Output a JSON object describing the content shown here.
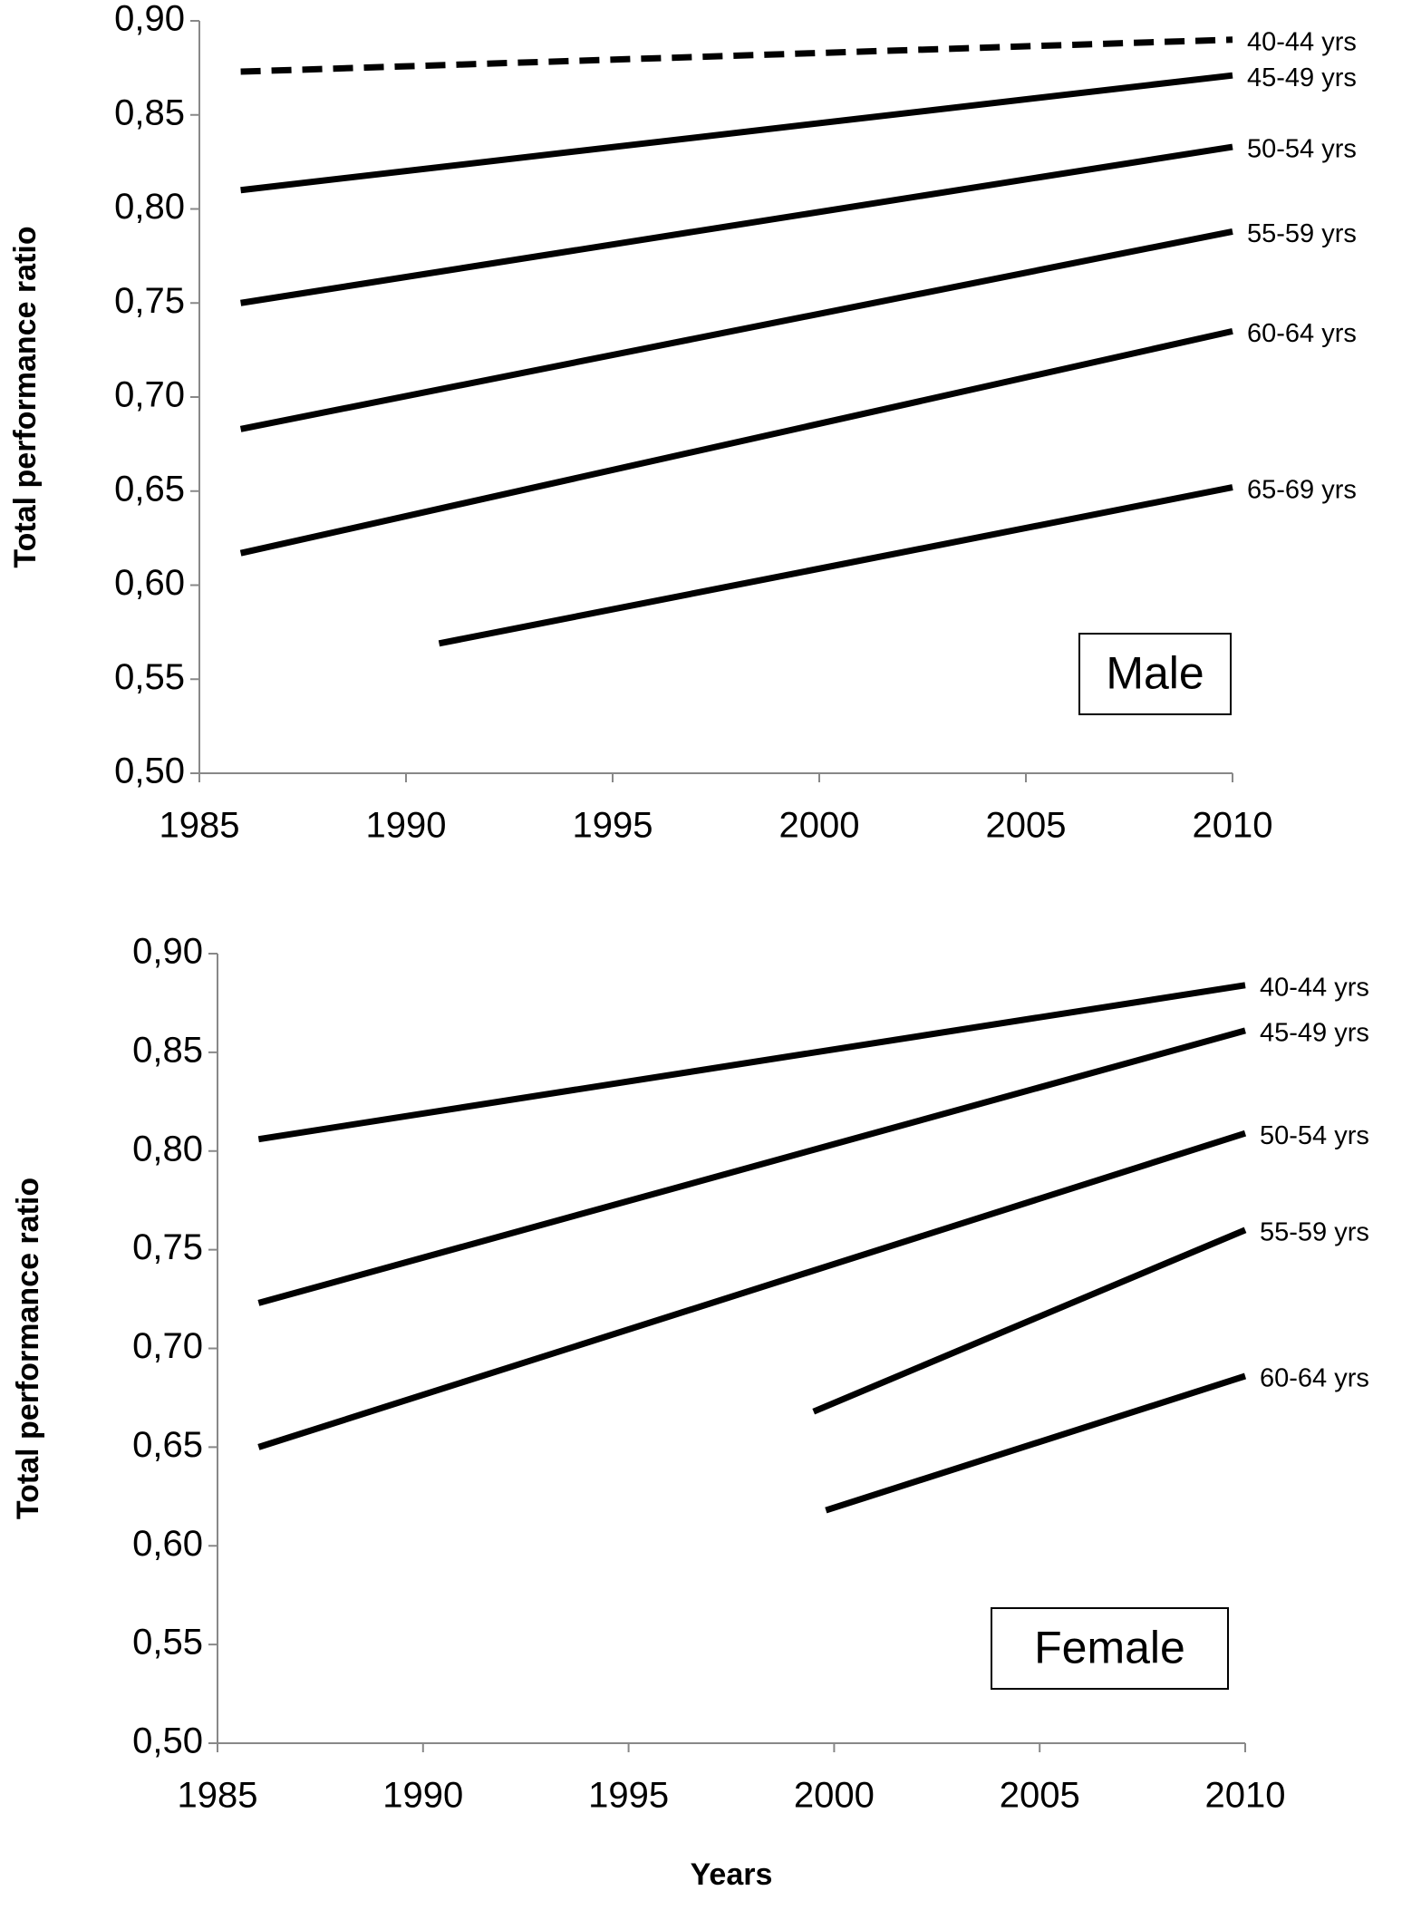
{
  "chart_data": [
    {
      "type": "line",
      "annotation": "Male",
      "y_label": "Total performance ratio",
      "xlim": [
        1985,
        2010
      ],
      "xticks": [
        1985,
        1990,
        1995,
        2000,
        2005,
        2010
      ],
      "ylim": [
        0.5,
        0.9
      ],
      "yticks": [
        {
          "value": 0.5,
          "label": "0,50"
        },
        {
          "value": 0.55,
          "label": "0,55"
        },
        {
          "value": 0.6,
          "label": "0,60"
        },
        {
          "value": 0.65,
          "label": "0,65"
        },
        {
          "value": 0.7,
          "label": "0,70"
        },
        {
          "value": 0.75,
          "label": "0,75"
        },
        {
          "value": 0.8,
          "label": "0,80"
        },
        {
          "value": 0.85,
          "label": "0,85"
        },
        {
          "value": 0.9,
          "label": "0,90"
        }
      ],
      "series": [
        {
          "name": "40-44 yrs",
          "color": "#000000",
          "style": "dashed",
          "x": [
            1986,
            2010
          ],
          "values": [
            0.873,
            0.89
          ]
        },
        {
          "name": "45-49 yrs",
          "color": "#000000",
          "style": "solid",
          "x": [
            1986,
            2010
          ],
          "values": [
            0.81,
            0.871
          ]
        },
        {
          "name": "50-54 yrs",
          "color": "#000000",
          "style": "solid",
          "x": [
            1986,
            2010
          ],
          "values": [
            0.75,
            0.833
          ]
        },
        {
          "name": "55-59 yrs",
          "color": "#000000",
          "style": "solid",
          "x": [
            1986,
            2010
          ],
          "values": [
            0.683,
            0.788
          ]
        },
        {
          "name": "60-64 yrs",
          "color": "#000000",
          "style": "solid",
          "x": [
            1986,
            2010
          ],
          "values": [
            0.617,
            0.735
          ]
        },
        {
          "name": "65-69 yrs",
          "color": "#000000",
          "style": "solid",
          "x": [
            1990.8,
            2010
          ],
          "values": [
            0.569,
            0.652
          ]
        }
      ]
    },
    {
      "type": "line",
      "annotation": "Female",
      "y_label": "Total performance ratio",
      "x_label": "Years",
      "xlim": [
        1985,
        2010
      ],
      "xticks": [
        1985,
        1990,
        1995,
        2000,
        2005,
        2010
      ],
      "ylim": [
        0.5,
        0.9
      ],
      "yticks": [
        {
          "value": 0.5,
          "label": "0,50"
        },
        {
          "value": 0.55,
          "label": "0,55"
        },
        {
          "value": 0.6,
          "label": "0,60"
        },
        {
          "value": 0.65,
          "label": "0,65"
        },
        {
          "value": 0.7,
          "label": "0,70"
        },
        {
          "value": 0.75,
          "label": "0,75"
        },
        {
          "value": 0.8,
          "label": "0,80"
        },
        {
          "value": 0.85,
          "label": "0,85"
        },
        {
          "value": 0.9,
          "label": "0,90"
        }
      ],
      "series": [
        {
          "name": "40-44 yrs",
          "color": "#000000",
          "style": "solid",
          "x": [
            1986,
            2010
          ],
          "values": [
            0.806,
            0.884
          ]
        },
        {
          "name": "45-49 yrs",
          "color": "#000000",
          "style": "solid",
          "x": [
            1986,
            2010
          ],
          "values": [
            0.723,
            0.861
          ]
        },
        {
          "name": "50-54 yrs",
          "color": "#000000",
          "style": "solid",
          "x": [
            1986,
            2010
          ],
          "values": [
            0.65,
            0.809
          ]
        },
        {
          "name": "55-59 yrs",
          "color": "#000000",
          "style": "solid",
          "x": [
            1999.5,
            2010
          ],
          "values": [
            0.668,
            0.76
          ]
        },
        {
          "name": "60-64 yrs",
          "color": "#000000",
          "style": "solid",
          "x": [
            1999.8,
            2010
          ],
          "values": [
            0.618,
            0.686
          ]
        }
      ]
    }
  ]
}
